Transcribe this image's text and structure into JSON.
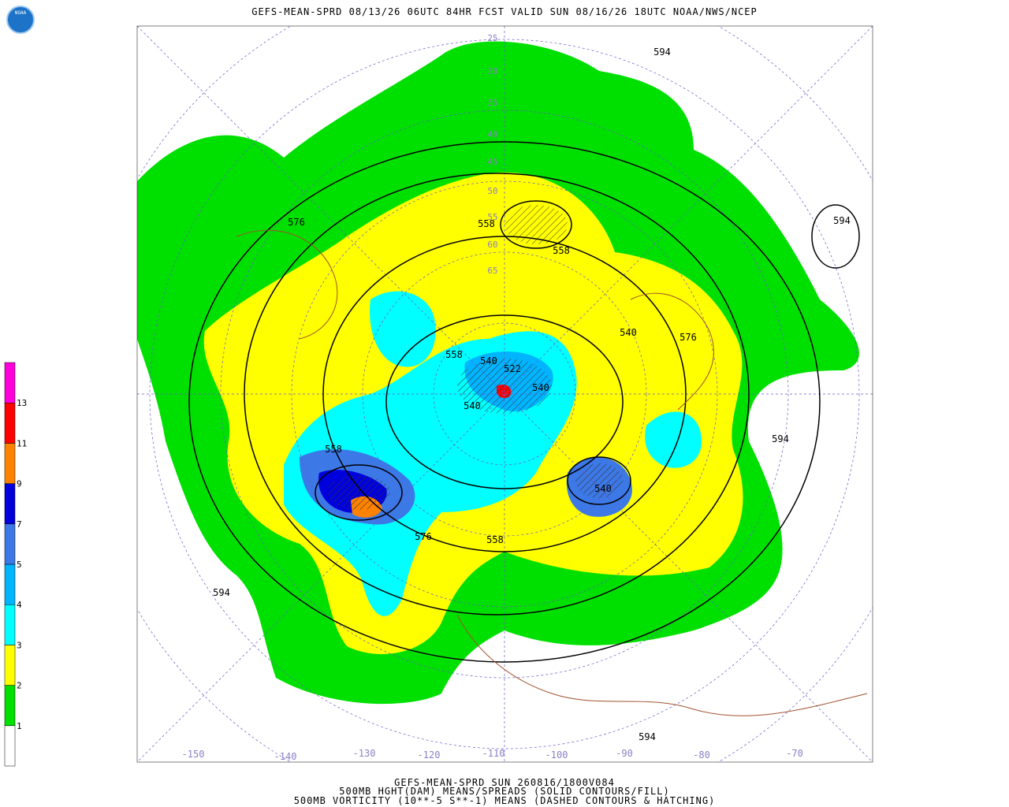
{
  "header": {
    "title": "GEFS-MEAN-SPRD 08/13/26 06UTC 84HR FCST VALID SUN 08/16/26 18UTC NOAA/NWS/NCEP",
    "logo": "NOAA"
  },
  "footer": {
    "lines": [
      "GEFS-MEAN-SPRD SUN 260816/1800V084",
      "500MB HGHT(DAM) MEANS/SPREADS (SOLID CONTOURS/FILL)",
      "500MB VORTICITY (10**-5 S**-1) MEANS (DASHED CONTOURS & HATCHING)"
    ]
  },
  "colorbar": {
    "labels": [
      "1",
      "2",
      "3",
      "4",
      "5",
      "7",
      "9",
      "11",
      "13"
    ],
    "colors": [
      "#ffffff",
      "#00e000",
      "#ffff00",
      "#00ffff",
      "#00b4ff",
      "#3c78e6",
      "#0000dc",
      "#ff8200",
      "#ff0000",
      "#ff00dc"
    ]
  },
  "contour_labels": [
    "594",
    "594",
    "576",
    "558",
    "558",
    "558",
    "540",
    "522",
    "540",
    "540",
    "576",
    "540",
    "558",
    "594",
    "540",
    "576",
    "558",
    "594",
    "594"
  ],
  "longitude_labels": [
    "-150",
    "-140",
    "-130",
    "-120",
    "-110",
    "-100",
    "-90",
    "-80",
    "-70"
  ],
  "latitude_labels": [
    "25",
    "30",
    "35",
    "40",
    "45",
    "50",
    "55",
    "60",
    "65"
  ]
}
